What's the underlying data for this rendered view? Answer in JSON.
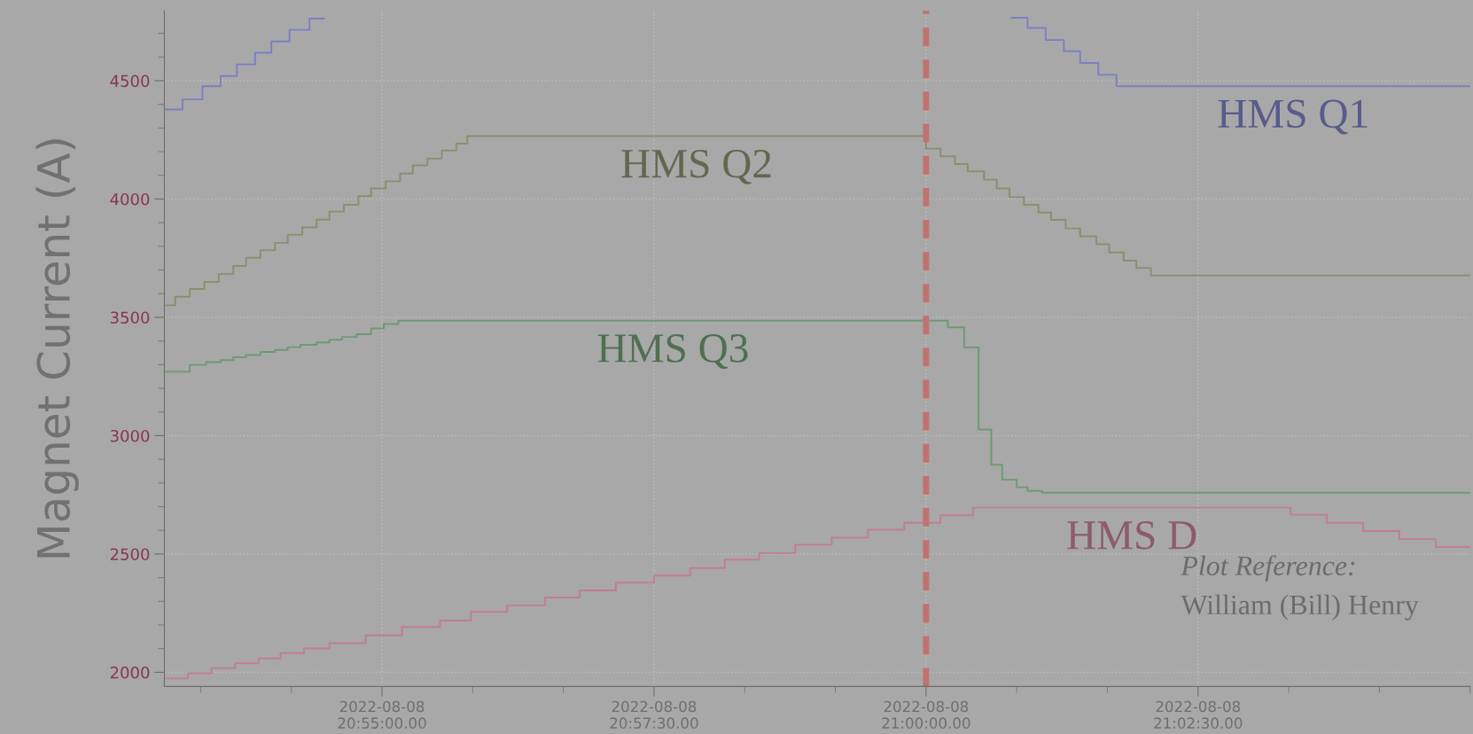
{
  "chart_data": {
    "type": "step",
    "ylabel": "Magnet Current (A)",
    "xlim": [
      "2022-08-08T20:53:00",
      "2022-08-08T21:05:00"
    ],
    "xticks": [
      {
        "value": "2022-08-08T20:53:20",
        "label": null
      },
      {
        "value": "2022-08-08T20:54:10",
        "label": null
      },
      {
        "value": "2022-08-08T20:55:00",
        "label": "2022-08-08\n20:55:00.00"
      },
      {
        "value": "2022-08-08T20:55:50",
        "label": null
      },
      {
        "value": "2022-08-08T20:56:40",
        "label": null
      },
      {
        "value": "2022-08-08T20:57:30",
        "label": "2022-08-08\n20:57:30.00"
      },
      {
        "value": "2022-08-08T20:58:20",
        "label": null
      },
      {
        "value": "2022-08-08T20:59:10",
        "label": null
      },
      {
        "value": "2022-08-08T21:00:00",
        "label": "2022-08-08\n21:00:00.00"
      },
      {
        "value": "2022-08-08T21:00:50",
        "label": null
      },
      {
        "value": "2022-08-08T21:01:40",
        "label": null
      },
      {
        "value": "2022-08-08T21:02:30",
        "label": "2022-08-08\n21:02:30.00"
      },
      {
        "value": "2022-08-08T21:03:20",
        "label": null
      },
      {
        "value": "2022-08-08T21:04:10",
        "label": null
      },
      {
        "value": "2022-08-08T21:05:00",
        "label": null
      }
    ],
    "ylim": [
      1940,
      4796
    ],
    "yticks": [
      2000,
      {
        "value": 2100,
        "label": null
      },
      {
        "value": 2200,
        "label": null
      },
      {
        "value": 2300,
        "label": null
      },
      {
        "value": 2400,
        "label": null
      },
      2500,
      {
        "value": 2600,
        "label": null
      },
      {
        "value": 2700,
        "label": null
      },
      {
        "value": 2800,
        "label": null
      },
      {
        "value": 2900,
        "label": null
      },
      3000,
      {
        "value": 3100,
        "label": null
      },
      {
        "value": 3200,
        "label": null
      },
      {
        "value": 3300,
        "label": null
      },
      {
        "value": 3400,
        "label": null
      },
      3500,
      {
        "value": 3600,
        "label": null
      },
      {
        "value": 3700,
        "label": null
      },
      {
        "value": 3800,
        "label": null
      },
      {
        "value": 3900,
        "label": null
      },
      4000,
      {
        "value": 4100,
        "label": null
      },
      {
        "value": 4200,
        "label": null
      },
      {
        "value": 4300,
        "label": null
      },
      {
        "value": 4400,
        "label": null
      },
      4500,
      {
        "value": 4600,
        "label": null
      },
      {
        "value": 4700,
        "label": null
      }
    ],
    "grid": true,
    "legend": false,
    "marker": "none",
    "line_style": "solid",
    "ref_lines": [
      {
        "axis": "x",
        "value": "2022-08-08T21:00:00",
        "label": null,
        "color": "#c0736e",
        "line_style": "dashed"
      }
    ],
    "annotations": [
      "Plot Reference:",
      "William (Bill) Henry"
    ],
    "series": [
      {
        "name": "HMS Q1",
        "color": "#7b7fc4",
        "x": [
          "2022-08-08T20:53:00",
          "2022-08-08T20:53:10",
          "2022-08-08T20:53:21",
          "2022-08-08T20:53:31",
          "2022-08-08T20:53:40",
          "2022-08-08T20:53:50",
          "2022-08-08T20:53:59",
          "2022-08-08T20:54:09",
          "2022-08-08T20:54:20",
          "2022-08-08T20:54:28",
          "2022-08-08T21:00:47",
          "2022-08-08T21:00:56",
          "2022-08-08T21:01:06",
          "2022-08-08T21:01:16",
          "2022-08-08T21:01:25",
          "2022-08-08T21:01:35",
          "2022-08-08T21:01:45",
          "2022-08-08T21:05:00"
        ],
        "values": [
          4378,
          4421,
          4477,
          4520,
          4569,
          4618,
          4666,
          4715,
          4762,
          null,
          4766,
          4723,
          4672,
          4625,
          4575,
          4525,
          4477,
          4477
        ]
      },
      {
        "name": "HMS Q2",
        "color": "#8c8e6e",
        "x": [
          "2022-08-08T20:53:00",
          "2022-08-08T20:53:06",
          "2022-08-08T20:53:14",
          "2022-08-08T20:53:22",
          "2022-08-08T20:53:30",
          "2022-08-08T20:53:38",
          "2022-08-08T20:53:45",
          "2022-08-08T20:53:53",
          "2022-08-08T20:54:01",
          "2022-08-08T20:54:08",
          "2022-08-08T20:54:16",
          "2022-08-08T20:54:24",
          "2022-08-08T20:54:31",
          "2022-08-08T20:54:39",
          "2022-08-08T20:54:47",
          "2022-08-08T20:54:54",
          "2022-08-08T20:55:02",
          "2022-08-08T20:55:10",
          "2022-08-08T20:55:17",
          "2022-08-08T20:55:25",
          "2022-08-08T20:55:33",
          "2022-08-08T20:55:41",
          "2022-08-08T20:55:47",
          "2022-08-08T21:00:00",
          "2022-08-08T21:00:08",
          "2022-08-08T21:00:16",
          "2022-08-08T21:00:23",
          "2022-08-08T21:00:32",
          "2022-08-08T21:00:39",
          "2022-08-08T21:00:46",
          "2022-08-08T21:00:54",
          "2022-08-08T21:01:02",
          "2022-08-08T21:01:09",
          "2022-08-08T21:01:17",
          "2022-08-08T21:01:25",
          "2022-08-08T21:01:34",
          "2022-08-08T21:01:41",
          "2022-08-08T21:01:49",
          "2022-08-08T21:01:56",
          "2022-08-08T21:02:04",
          "2022-08-08T21:05:00"
        ],
        "values": [
          3551,
          3587,
          3620,
          3650,
          3683,
          3717,
          3752,
          3784,
          3815,
          3849,
          3880,
          3913,
          3947,
          3976,
          4012,
          4045,
          4075,
          4108,
          4142,
          4171,
          4205,
          4234,
          4266,
          4213,
          4181,
          4148,
          4117,
          4082,
          4045,
          4008,
          3976,
          3943,
          3912,
          3876,
          3843,
          3809,
          3774,
          3740,
          3709,
          3677,
          3677
        ]
      },
      {
        "name": "HMS Q3",
        "color": "#6e9a72",
        "x": [
          "2022-08-08T20:53:00",
          "2022-08-08T20:53:14",
          "2022-08-08T20:53:23",
          "2022-08-08T20:53:31",
          "2022-08-08T20:53:38",
          "2022-08-08T20:53:45",
          "2022-08-08T20:53:53",
          "2022-08-08T20:54:01",
          "2022-08-08T20:54:08",
          "2022-08-08T20:54:15",
          "2022-08-08T20:54:24",
          "2022-08-08T20:54:31",
          "2022-08-08T20:54:38",
          "2022-08-08T20:54:46",
          "2022-08-08T20:54:54",
          "2022-08-08T20:55:01",
          "2022-08-08T20:55:09",
          "2022-08-08T21:00:12",
          "2022-08-08T21:00:21",
          "2022-08-08T21:00:29",
          "2022-08-08T21:00:36",
          "2022-08-08T21:00:42",
          "2022-08-08T21:00:50",
          "2022-08-08T21:00:56",
          "2022-08-08T21:01:04",
          "2022-08-08T21:05:00"
        ],
        "values": [
          3270,
          3299,
          3311,
          3319,
          3331,
          3341,
          3354,
          3362,
          3374,
          3384,
          3394,
          3405,
          3417,
          3429,
          3453,
          3472,
          3486,
          3458,
          3373,
          3026,
          2877,
          2814,
          2782,
          2767,
          2759,
          2759
        ]
      },
      {
        "name": "HMS D",
        "color": "#c27e92",
        "x": [
          "2022-08-08T20:53:00",
          "2022-08-08T20:53:13",
          "2022-08-08T20:53:26",
          "2022-08-08T20:53:39",
          "2022-08-08T20:53:52",
          "2022-08-08T20:54:04",
          "2022-08-08T20:54:17",
          "2022-08-08T20:54:31",
          "2022-08-08T20:54:51",
          "2022-08-08T20:55:11",
          "2022-08-08T20:55:32",
          "2022-08-08T20:55:49",
          "2022-08-08T20:56:09",
          "2022-08-08T20:56:30",
          "2022-08-08T20:56:49",
          "2022-08-08T20:57:09",
          "2022-08-08T20:57:30",
          "2022-08-08T20:57:50",
          "2022-08-08T20:58:09",
          "2022-08-08T20:58:28",
          "2022-08-08T20:58:48",
          "2022-08-08T20:59:08",
          "2022-08-08T20:59:28",
          "2022-08-08T20:59:48",
          "2022-08-08T21:00:08",
          "2022-08-08T21:00:26",
          "2022-08-08T21:03:21",
          "2022-08-08T21:03:41",
          "2022-08-08T21:04:01",
          "2022-08-08T21:04:21",
          "2022-08-08T21:04:41",
          "2022-08-08T21:05:00"
        ],
        "values": [
          1974,
          1996,
          2018,
          2038,
          2059,
          2081,
          2101,
          2123,
          2156,
          2192,
          2219,
          2255,
          2283,
          2316,
          2346,
          2379,
          2409,
          2441,
          2476,
          2504,
          2539,
          2569,
          2603,
          2632,
          2664,
          2696,
          2666,
          2632,
          2597,
          2563,
          2530,
          2530
        ]
      }
    ]
  }
}
